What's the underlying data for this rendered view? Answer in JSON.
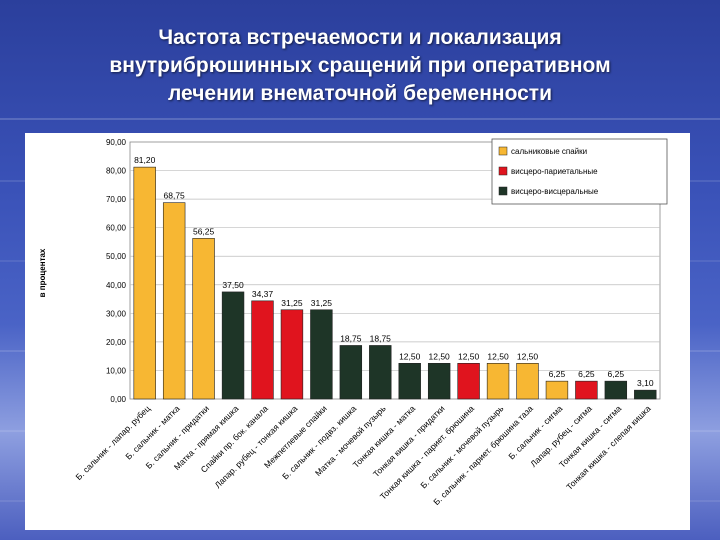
{
  "slide": {
    "title_lines": [
      "Частота встречаемости и локализация",
      "внутрибрюшинных сращений при оперативном",
      "лечении внематочной беременности"
    ]
  },
  "chart_data": {
    "type": "bar",
    "ylabel": "в процентах",
    "ylim": [
      0,
      90
    ],
    "yticks": [
      "0,00",
      "10,00",
      "20,00",
      "30,00",
      "40,00",
      "50,00",
      "60,00",
      "70,00",
      "80,00",
      "90,00"
    ],
    "grid": true,
    "legend_position": "top-right",
    "legend": [
      {
        "label": "сальниковые спайки",
        "color": "#f7b733"
      },
      {
        "label": "висцеро-париетальные",
        "color": "#e0141e"
      },
      {
        "label": "висцеро-висцеральные",
        "color": "#1e3527"
      }
    ],
    "bars": [
      {
        "category": "Б. сальник - лапар. рубец",
        "value": 81.2,
        "label": "81,20",
        "color": "#f7b733"
      },
      {
        "category": "Б. сальник - матка",
        "value": 68.75,
        "label": "68,75",
        "color": "#f7b733"
      },
      {
        "category": "Б. сальник - придатки",
        "value": 56.25,
        "label": "56,25",
        "color": "#f7b733"
      },
      {
        "category": "Матка - прямая кишка",
        "value": 37.5,
        "label": "37,50",
        "color": "#1e3527"
      },
      {
        "category": "Спайки пр. бок. канала",
        "value": 34.37,
        "label": "34,37",
        "color": "#e0141e"
      },
      {
        "category": "Лапар. рубец - тонкая кишка",
        "value": 31.25,
        "label": "31,25",
        "color": "#e0141e"
      },
      {
        "category": "Межпетлевые спайки",
        "value": 31.25,
        "label": "31,25",
        "color": "#1e3527"
      },
      {
        "category": "Б. сальник - подвз. кишка",
        "value": 18.75,
        "label": "18,75",
        "color": "#1e3527"
      },
      {
        "category": "Матка - мочевой пузырь",
        "value": 18.75,
        "label": "18,75",
        "color": "#1e3527"
      },
      {
        "category": "Тонкая кишка - матка",
        "value": 12.5,
        "label": "12,50",
        "color": "#1e3527"
      },
      {
        "category": "Тонкая кишка - придатки",
        "value": 12.5,
        "label": "12,50",
        "color": "#1e3527"
      },
      {
        "category": "Тонкая кишка - париет. брюшина",
        "value": 12.5,
        "label": "12,50",
        "color": "#e0141e"
      },
      {
        "category": "Б. сальник - мочевой пузырь",
        "value": 12.5,
        "label": "12,50",
        "color": "#f7b733"
      },
      {
        "category": "Б. сальник - париет. брюшина таза",
        "value": 12.5,
        "label": "12,50",
        "color": "#f7b733"
      },
      {
        "category": "Б. сальник - сигма",
        "value": 6.25,
        "label": "6,25",
        "color": "#f7b733"
      },
      {
        "category": "Лапар. рубец - сигма",
        "value": 6.25,
        "label": "6,25",
        "color": "#e0141e"
      },
      {
        "category": "Тонкая кишка - сигма",
        "value": 6.25,
        "label": "6,25",
        "color": "#1e3527"
      },
      {
        "category": "Тонкая кишка - слепая кишка",
        "value": 3.1,
        "label": "3,10",
        "color": "#1e3527"
      }
    ]
  }
}
